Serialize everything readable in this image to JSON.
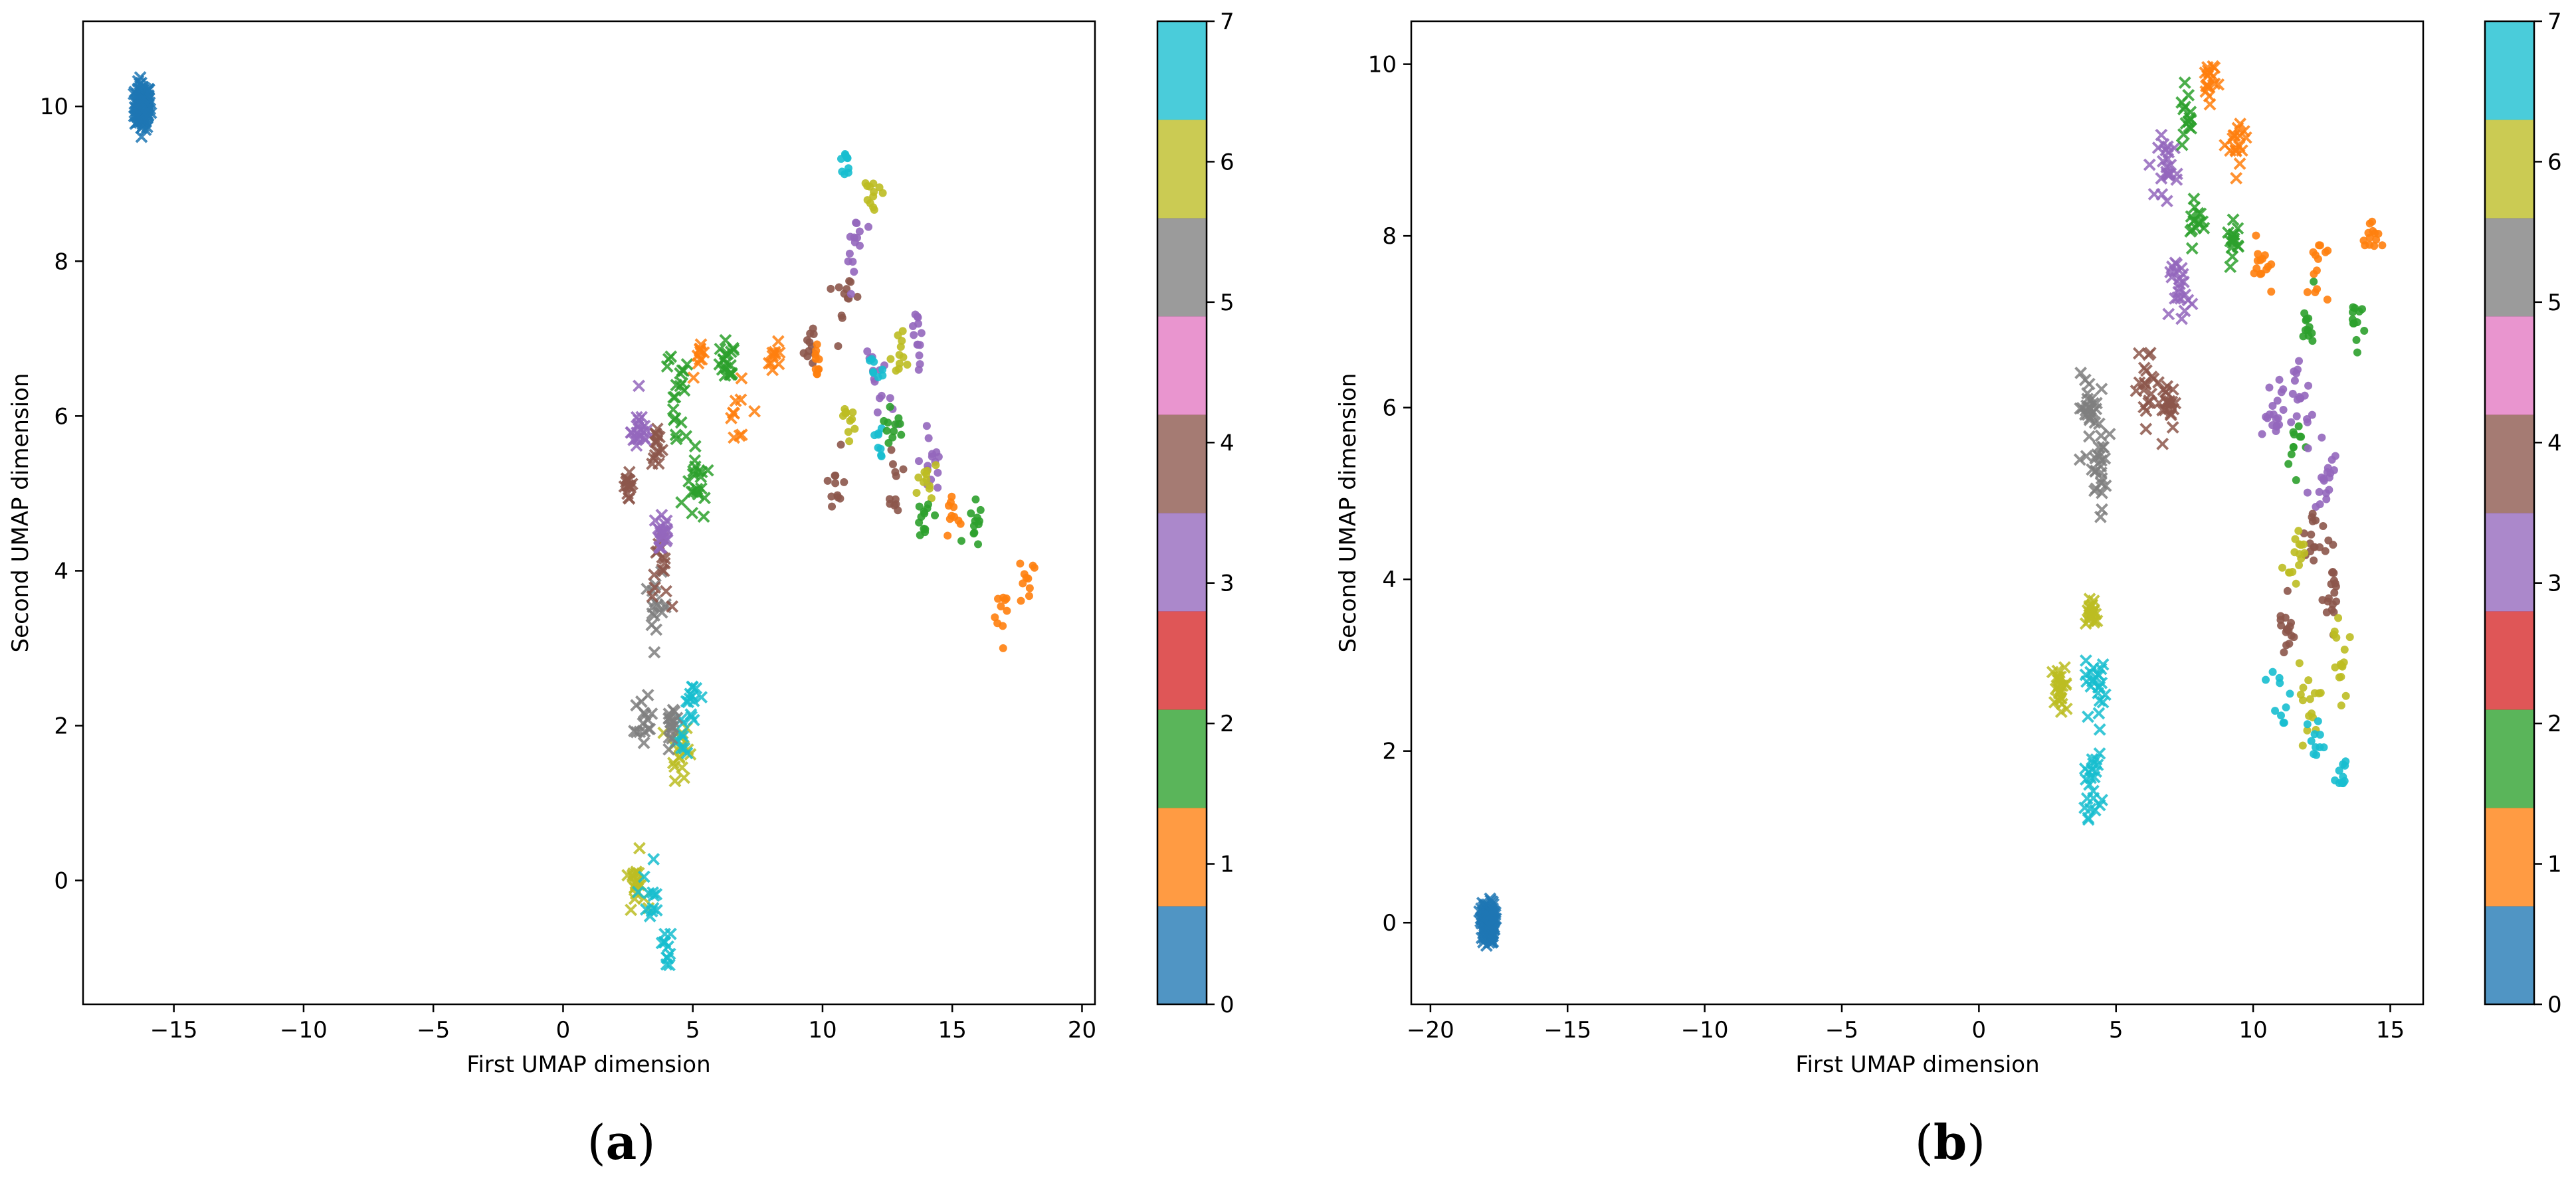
{
  "chart_data": [
    {
      "type": "scatter",
      "panel_label": "a",
      "xlabel": "First UMAP dimension",
      "ylabel": "Second UMAP dimension",
      "xlim": [
        -18.5,
        20.5
      ],
      "ylim": [
        -1.6,
        11.1
      ],
      "xticks": [
        -15,
        -10,
        -5,
        0,
        5,
        10,
        15,
        20
      ],
      "yticks": [
        0,
        2,
        4,
        6,
        8,
        10
      ],
      "colorbar": {
        "ticks": [
          0,
          1,
          2,
          3,
          4,
          5,
          6,
          7
        ],
        "range": [
          0,
          7
        ]
      },
      "markers": {
        "x": "cross",
        "o": "dot"
      },
      "clusters": [
        {
          "label": 0,
          "marker": "x",
          "n": 160,
          "points": [
            [
              -16.2,
              10.0,
              0.25
            ]
          ]
        },
        {
          "label": 6,
          "marker": "x",
          "n": 40,
          "points": [
            [
              2.8,
              0.0,
              0.3
            ],
            [
              4.5,
              1.7,
              0.3
            ]
          ]
        },
        {
          "label": 7,
          "marker": "x",
          "n": 45,
          "points": [
            [
              3.5,
              -0.2,
              0.35
            ],
            [
              3.9,
              -0.9,
              0.2
            ],
            [
              4.6,
              1.9,
              0.35
            ],
            [
              5.0,
              2.4,
              0.2
            ]
          ]
        },
        {
          "label": 5,
          "marker": "x",
          "n": 45,
          "points": [
            [
              3.1,
              2.0,
              0.3
            ],
            [
              3.6,
              3.5,
              0.35
            ],
            [
              4.2,
              2.1,
              0.2
            ]
          ]
        },
        {
          "label": 4,
          "marker": "x",
          "n": 45,
          "points": [
            [
              3.8,
              4.0,
              0.3
            ],
            [
              2.5,
              5.1,
              0.15
            ],
            [
              3.6,
              5.6,
              0.2
            ]
          ]
        },
        {
          "label": 3,
          "marker": "x",
          "n": 40,
          "points": [
            [
              3.0,
              5.8,
              0.3
            ],
            [
              3.8,
              4.5,
              0.3
            ]
          ]
        },
        {
          "label": 2,
          "marker": "x",
          "n": 60,
          "points": [
            [
              4.3,
              6.2,
              0.5
            ],
            [
              5.2,
              5.1,
              0.4
            ],
            [
              6.3,
              6.6,
              0.3
            ]
          ]
        },
        {
          "label": 1,
          "marker": "x",
          "n": 30,
          "points": [
            [
              5.3,
              6.8,
              0.2
            ],
            [
              6.8,
              5.9,
              0.4
            ],
            [
              8.2,
              6.8,
              0.2
            ]
          ]
        },
        {
          "label": 4,
          "marker": "o",
          "n": 45,
          "points": [
            [
              11.0,
              7.4,
              0.4
            ],
            [
              10.6,
              5.2,
              0.3
            ],
            [
              12.8,
              5.2,
              0.4
            ],
            [
              9.5,
              6.9,
              0.2
            ]
          ]
        },
        {
          "label": 3,
          "marker": "o",
          "n": 55,
          "points": [
            [
              11.2,
              8.3,
              0.3
            ],
            [
              12.2,
              6.4,
              0.5
            ],
            [
              14.2,
              5.4,
              0.35
            ],
            [
              13.6,
              7.0,
              0.3
            ]
          ]
        },
        {
          "label": 6,
          "marker": "o",
          "n": 45,
          "points": [
            [
              11.9,
              8.8,
              0.3
            ],
            [
              13.0,
              6.8,
              0.3
            ],
            [
              14.0,
              5.0,
              0.3
            ],
            [
              10.9,
              6.0,
              0.3
            ]
          ]
        },
        {
          "label": 7,
          "marker": "o",
          "n": 25,
          "points": [
            [
              10.9,
              9.3,
              0.3
            ],
            [
              12.0,
              6.6,
              0.3
            ],
            [
              12.2,
              5.6,
              0.3
            ]
          ]
        },
        {
          "label": 1,
          "marker": "o",
          "n": 40,
          "points": [
            [
              17.0,
              3.6,
              0.35
            ],
            [
              17.9,
              3.9,
              0.3
            ],
            [
              15.0,
              4.7,
              0.25
            ],
            [
              9.8,
              6.7,
              0.2
            ]
          ]
        },
        {
          "label": 2,
          "marker": "o",
          "n": 35,
          "points": [
            [
              15.8,
              4.6,
              0.3
            ],
            [
              13.9,
              4.7,
              0.3
            ],
            [
              12.8,
              5.9,
              0.25
            ]
          ]
        }
      ]
    },
    {
      "type": "scatter",
      "panel_label": "b",
      "xlabel": "First UMAP dimension",
      "ylabel": "Second UMAP dimension",
      "xlim": [
        -20.7,
        16.2
      ],
      "ylim": [
        -0.95,
        10.5
      ],
      "xticks": [
        -20,
        -15,
        -10,
        -5,
        0,
        5,
        10,
        15
      ],
      "yticks": [
        0,
        2,
        4,
        6,
        8,
        10
      ],
      "colorbar": {
        "ticks": [
          0,
          1,
          2,
          3,
          4,
          5,
          6,
          7
        ],
        "range": [
          0,
          7
        ]
      },
      "markers": {
        "x": "cross",
        "o": "dot"
      },
      "clusters": [
        {
          "label": 0,
          "marker": "x",
          "n": 160,
          "points": [
            [
              -17.9,
              0.0,
              0.2
            ]
          ]
        },
        {
          "label": 6,
          "marker": "x",
          "n": 50,
          "points": [
            [
              3.0,
              2.7,
              0.25
            ],
            [
              4.1,
              3.6,
              0.15
            ]
          ]
        },
        {
          "label": 7,
          "marker": "x",
          "n": 45,
          "points": [
            [
              4.1,
              1.6,
              0.3
            ],
            [
              4.3,
              2.8,
              0.35
            ]
          ]
        },
        {
          "label": 5,
          "marker": "x",
          "n": 50,
          "points": [
            [
              4.4,
              5.3,
              0.4
            ],
            [
              4.0,
              6.0,
              0.3
            ]
          ]
        },
        {
          "label": 4,
          "marker": "x",
          "n": 40,
          "points": [
            [
              6.2,
              6.3,
              0.35
            ],
            [
              6.9,
              6.0,
              0.25
            ]
          ]
        },
        {
          "label": 3,
          "marker": "x",
          "n": 45,
          "points": [
            [
              6.9,
              8.8,
              0.3
            ],
            [
              7.3,
              7.4,
              0.3
            ]
          ]
        },
        {
          "label": 2,
          "marker": "x",
          "n": 45,
          "points": [
            [
              7.6,
              9.5,
              0.25
            ],
            [
              7.9,
              8.1,
              0.25
            ],
            [
              9.3,
              7.9,
              0.2
            ]
          ]
        },
        {
          "label": 1,
          "marker": "x",
          "n": 35,
          "points": [
            [
              8.4,
              9.8,
              0.2
            ],
            [
              9.4,
              9.1,
              0.3
            ]
          ]
        },
        {
          "label": 1,
          "marker": "o",
          "n": 40,
          "points": [
            [
              10.3,
              7.6,
              0.3
            ],
            [
              12.4,
              7.6,
              0.35
            ],
            [
              14.3,
              8.0,
              0.25
            ]
          ]
        },
        {
          "label": 2,
          "marker": "o",
          "n": 35,
          "points": [
            [
              12.0,
              7.0,
              0.3
            ],
            [
              13.8,
              7.0,
              0.25
            ],
            [
              11.5,
              5.6,
              0.3
            ]
          ]
        },
        {
          "label": 3,
          "marker": "o",
          "n": 55,
          "points": [
            [
              11.7,
              6.2,
              0.45
            ],
            [
              12.6,
              5.0,
              0.4
            ],
            [
              10.8,
              5.8,
              0.3
            ]
          ]
        },
        {
          "label": 4,
          "marker": "o",
          "n": 50,
          "points": [
            [
              12.2,
              4.5,
              0.4
            ],
            [
              13.0,
              3.8,
              0.35
            ],
            [
              11.2,
              3.4,
              0.3
            ]
          ]
        },
        {
          "label": 6,
          "marker": "o",
          "n": 45,
          "points": [
            [
              13.2,
              3.0,
              0.35
            ],
            [
              12.0,
              2.5,
              0.35
            ],
            [
              11.5,
              4.3,
              0.3
            ]
          ]
        },
        {
          "label": 7,
          "marker": "o",
          "n": 30,
          "points": [
            [
              12.3,
              2.1,
              0.3
            ],
            [
              13.3,
              1.8,
              0.2
            ],
            [
              11.0,
              2.6,
              0.3
            ]
          ]
        }
      ]
    }
  ],
  "colorbar_colors": [
    "#1f77b4",
    "#ff7f0e",
    "#2ca02c",
    "#d62728",
    "#9467bd",
    "#8c564b",
    "#e377c2",
    "#7f7f7f",
    "#bcbd22",
    "#17becf"
  ],
  "panels": {
    "a_label": "a",
    "b_label": "b"
  }
}
